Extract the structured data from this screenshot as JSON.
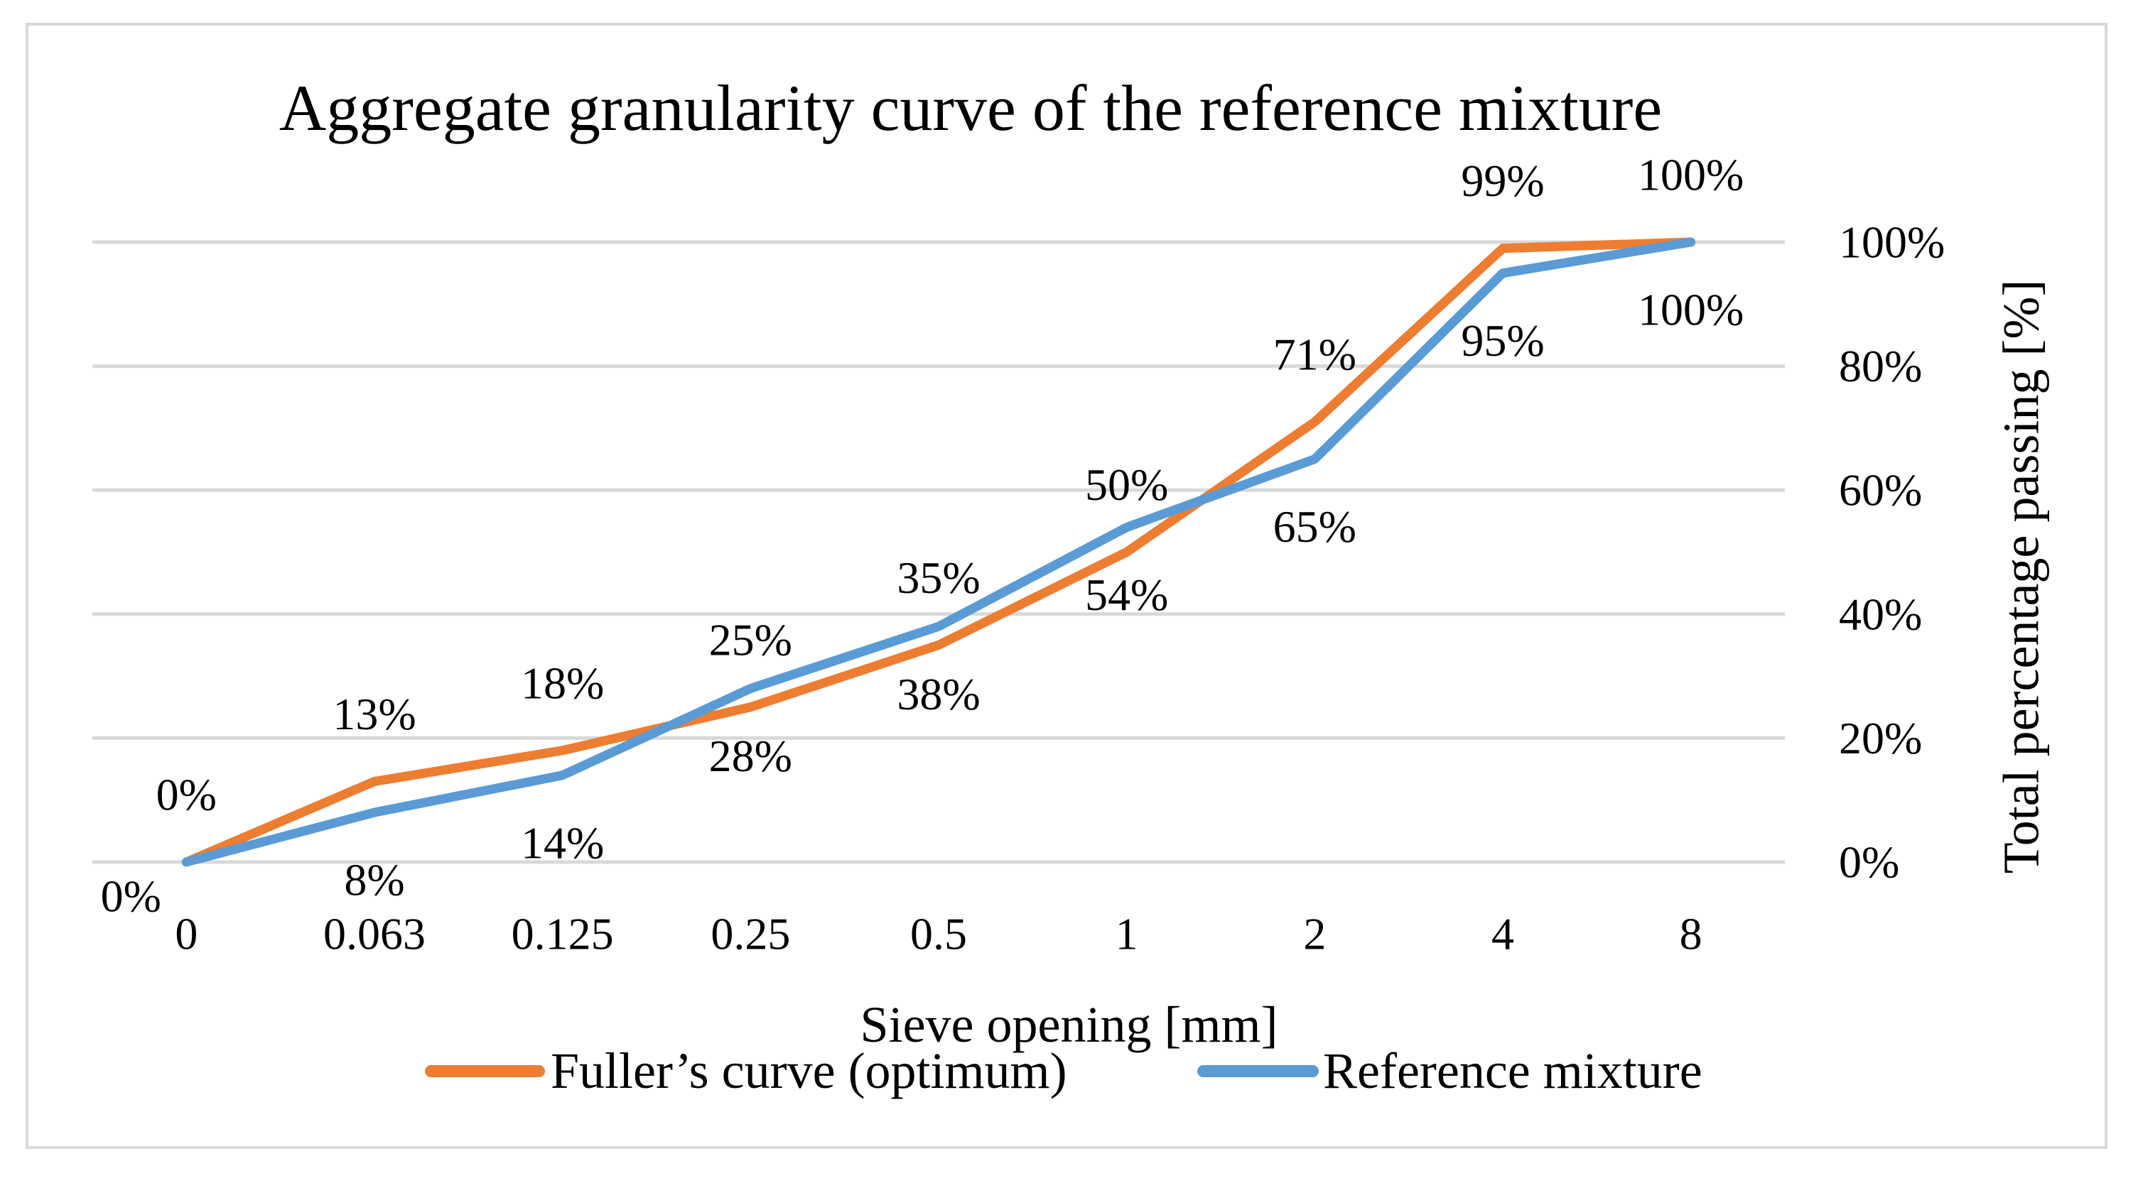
{
  "title": "Aggregate granularity curve of the reference mixture",
  "chart_data": {
    "type": "line",
    "title": "Aggregate granularity curve of the reference mixture",
    "xlabel": "Sieve opening [mm]",
    "ylabel": "Total percentage passing [%]",
    "categories": [
      "0",
      "0.063",
      "0.125",
      "0.25",
      "0.5",
      "1",
      "2",
      "4",
      "8"
    ],
    "series": [
      {
        "name": "Fuller’s curve (optimum)",
        "color": "#ED7D31",
        "values": [
          0,
          13,
          18,
          25,
          35,
          50,
          71,
          99,
          100
        ],
        "labels": [
          "0%",
          "13%",
          "18%",
          "25%",
          "35%",
          "50%",
          "71%",
          "99%",
          "100%"
        ],
        "label_side": "above"
      },
      {
        "name": "Reference mixture",
        "color": "#5B9BD5",
        "values": [
          0,
          8,
          14,
          28,
          38,
          54,
          65,
          95,
          100
        ],
        "labels": [
          "0%",
          "8%",
          "14%",
          "28%",
          "38%",
          "54%",
          "65%",
          "95%",
          "100%"
        ],
        "label_side": "below",
        "label_offset_overrides": {
          "0": {
            "dx": -78,
            "dy": 48
          }
        }
      }
    ],
    "y_ticks": [
      "0%",
      "20%",
      "40%",
      "60%",
      "80%",
      "100%"
    ],
    "ylim": [
      0,
      100
    ],
    "grid": true,
    "legend_position": "bottom",
    "gridline_color": "#D9D9D9",
    "text_color": "#000000"
  }
}
